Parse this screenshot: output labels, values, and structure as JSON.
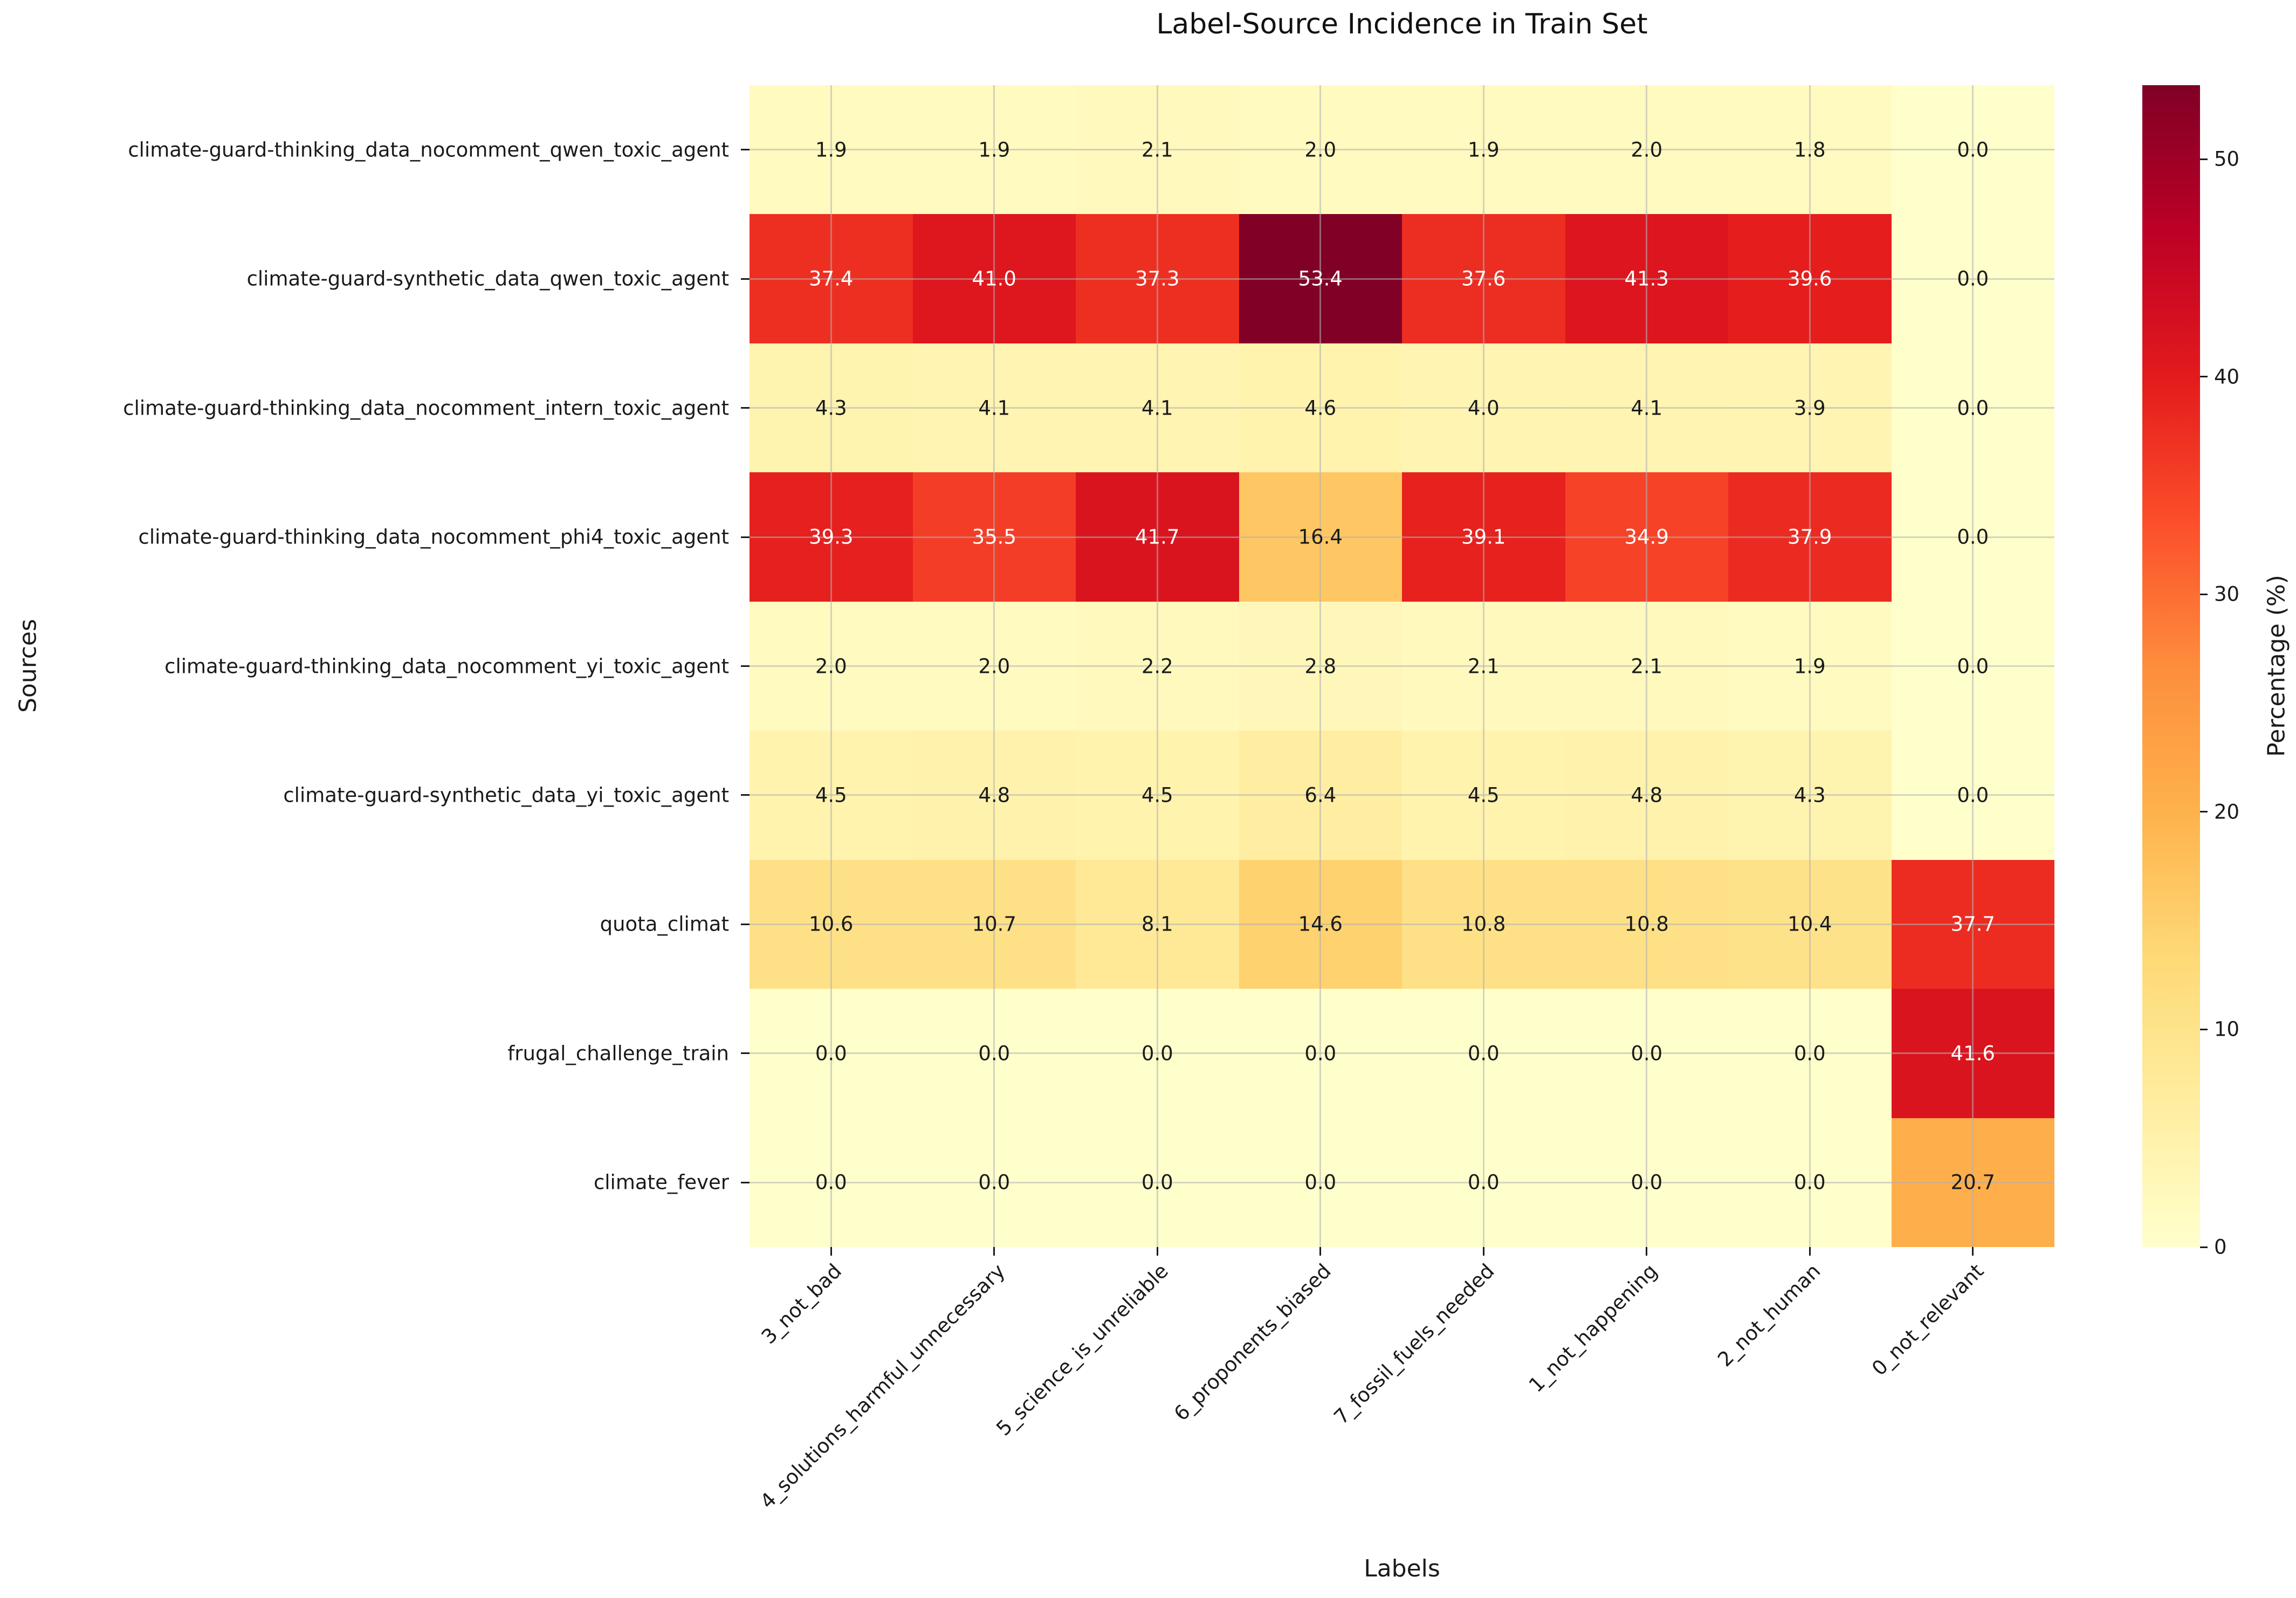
{
  "chart_data": {
    "type": "heatmap",
    "title": "Label-Source Incidence in Train Set",
    "xlabel": "Labels",
    "ylabel": "Sources",
    "colorbar_label": "Percentage (%)",
    "colorbar_ticks": [
      0,
      10,
      20,
      30,
      40,
      50
    ],
    "vmin": 0,
    "vmax": 53.4,
    "colormap": "YlOrRd",
    "colormap_stops": [
      "#ffffcc",
      "#ffeda0",
      "#fed976",
      "#feb24c",
      "#fd8d3c",
      "#fc4e2a",
      "#e31a1c",
      "#bd0026",
      "#800026"
    ],
    "grid": true,
    "annotation_decimals": 1,
    "categories_x": [
      "3_not_bad",
      "4_solutions_harmful_unnecessary",
      "5_science_is_unreliable",
      "6_proponents_biased",
      "7_fossil_fuels_needed",
      "1_not_happening",
      "2_not_human",
      "0_not_relevant"
    ],
    "categories_y": [
      "climate-guard-thinking_data_nocomment_qwen_toxic_agent",
      "climate-guard-synthetic_data_qwen_toxic_agent",
      "climate-guard-thinking_data_nocomment_intern_toxic_agent",
      "climate-guard-thinking_data_nocomment_phi4_toxic_agent",
      "climate-guard-thinking_data_nocomment_yi_toxic_agent",
      "climate-guard-synthetic_data_yi_toxic_agent",
      "quota_climat",
      "frugal_challenge_train",
      "climate_fever"
    ],
    "values": [
      [
        1.9,
        1.9,
        2.1,
        2.0,
        1.9,
        2.0,
        1.8,
        0.0
      ],
      [
        37.4,
        41.0,
        37.3,
        53.4,
        37.6,
        41.3,
        39.6,
        0.0
      ],
      [
        4.3,
        4.1,
        4.1,
        4.6,
        4.0,
        4.1,
        3.9,
        0.0
      ],
      [
        39.3,
        35.5,
        41.7,
        16.4,
        39.1,
        34.9,
        37.9,
        0.0
      ],
      [
        2.0,
        2.0,
        2.2,
        2.8,
        2.1,
        2.1,
        1.9,
        0.0
      ],
      [
        4.5,
        4.8,
        4.5,
        6.4,
        4.5,
        4.8,
        4.3,
        0.0
      ],
      [
        10.6,
        10.7,
        8.1,
        14.6,
        10.8,
        10.8,
        10.4,
        37.7
      ],
      [
        0.0,
        0.0,
        0.0,
        0.0,
        0.0,
        0.0,
        0.0,
        41.6
      ],
      [
        0.0,
        0.0,
        0.0,
        0.0,
        0.0,
        0.0,
        0.0,
        20.7
      ]
    ],
    "annotation_text_colors": {
      "dark": "#1a1a1a",
      "light": "#ffffff"
    }
  }
}
